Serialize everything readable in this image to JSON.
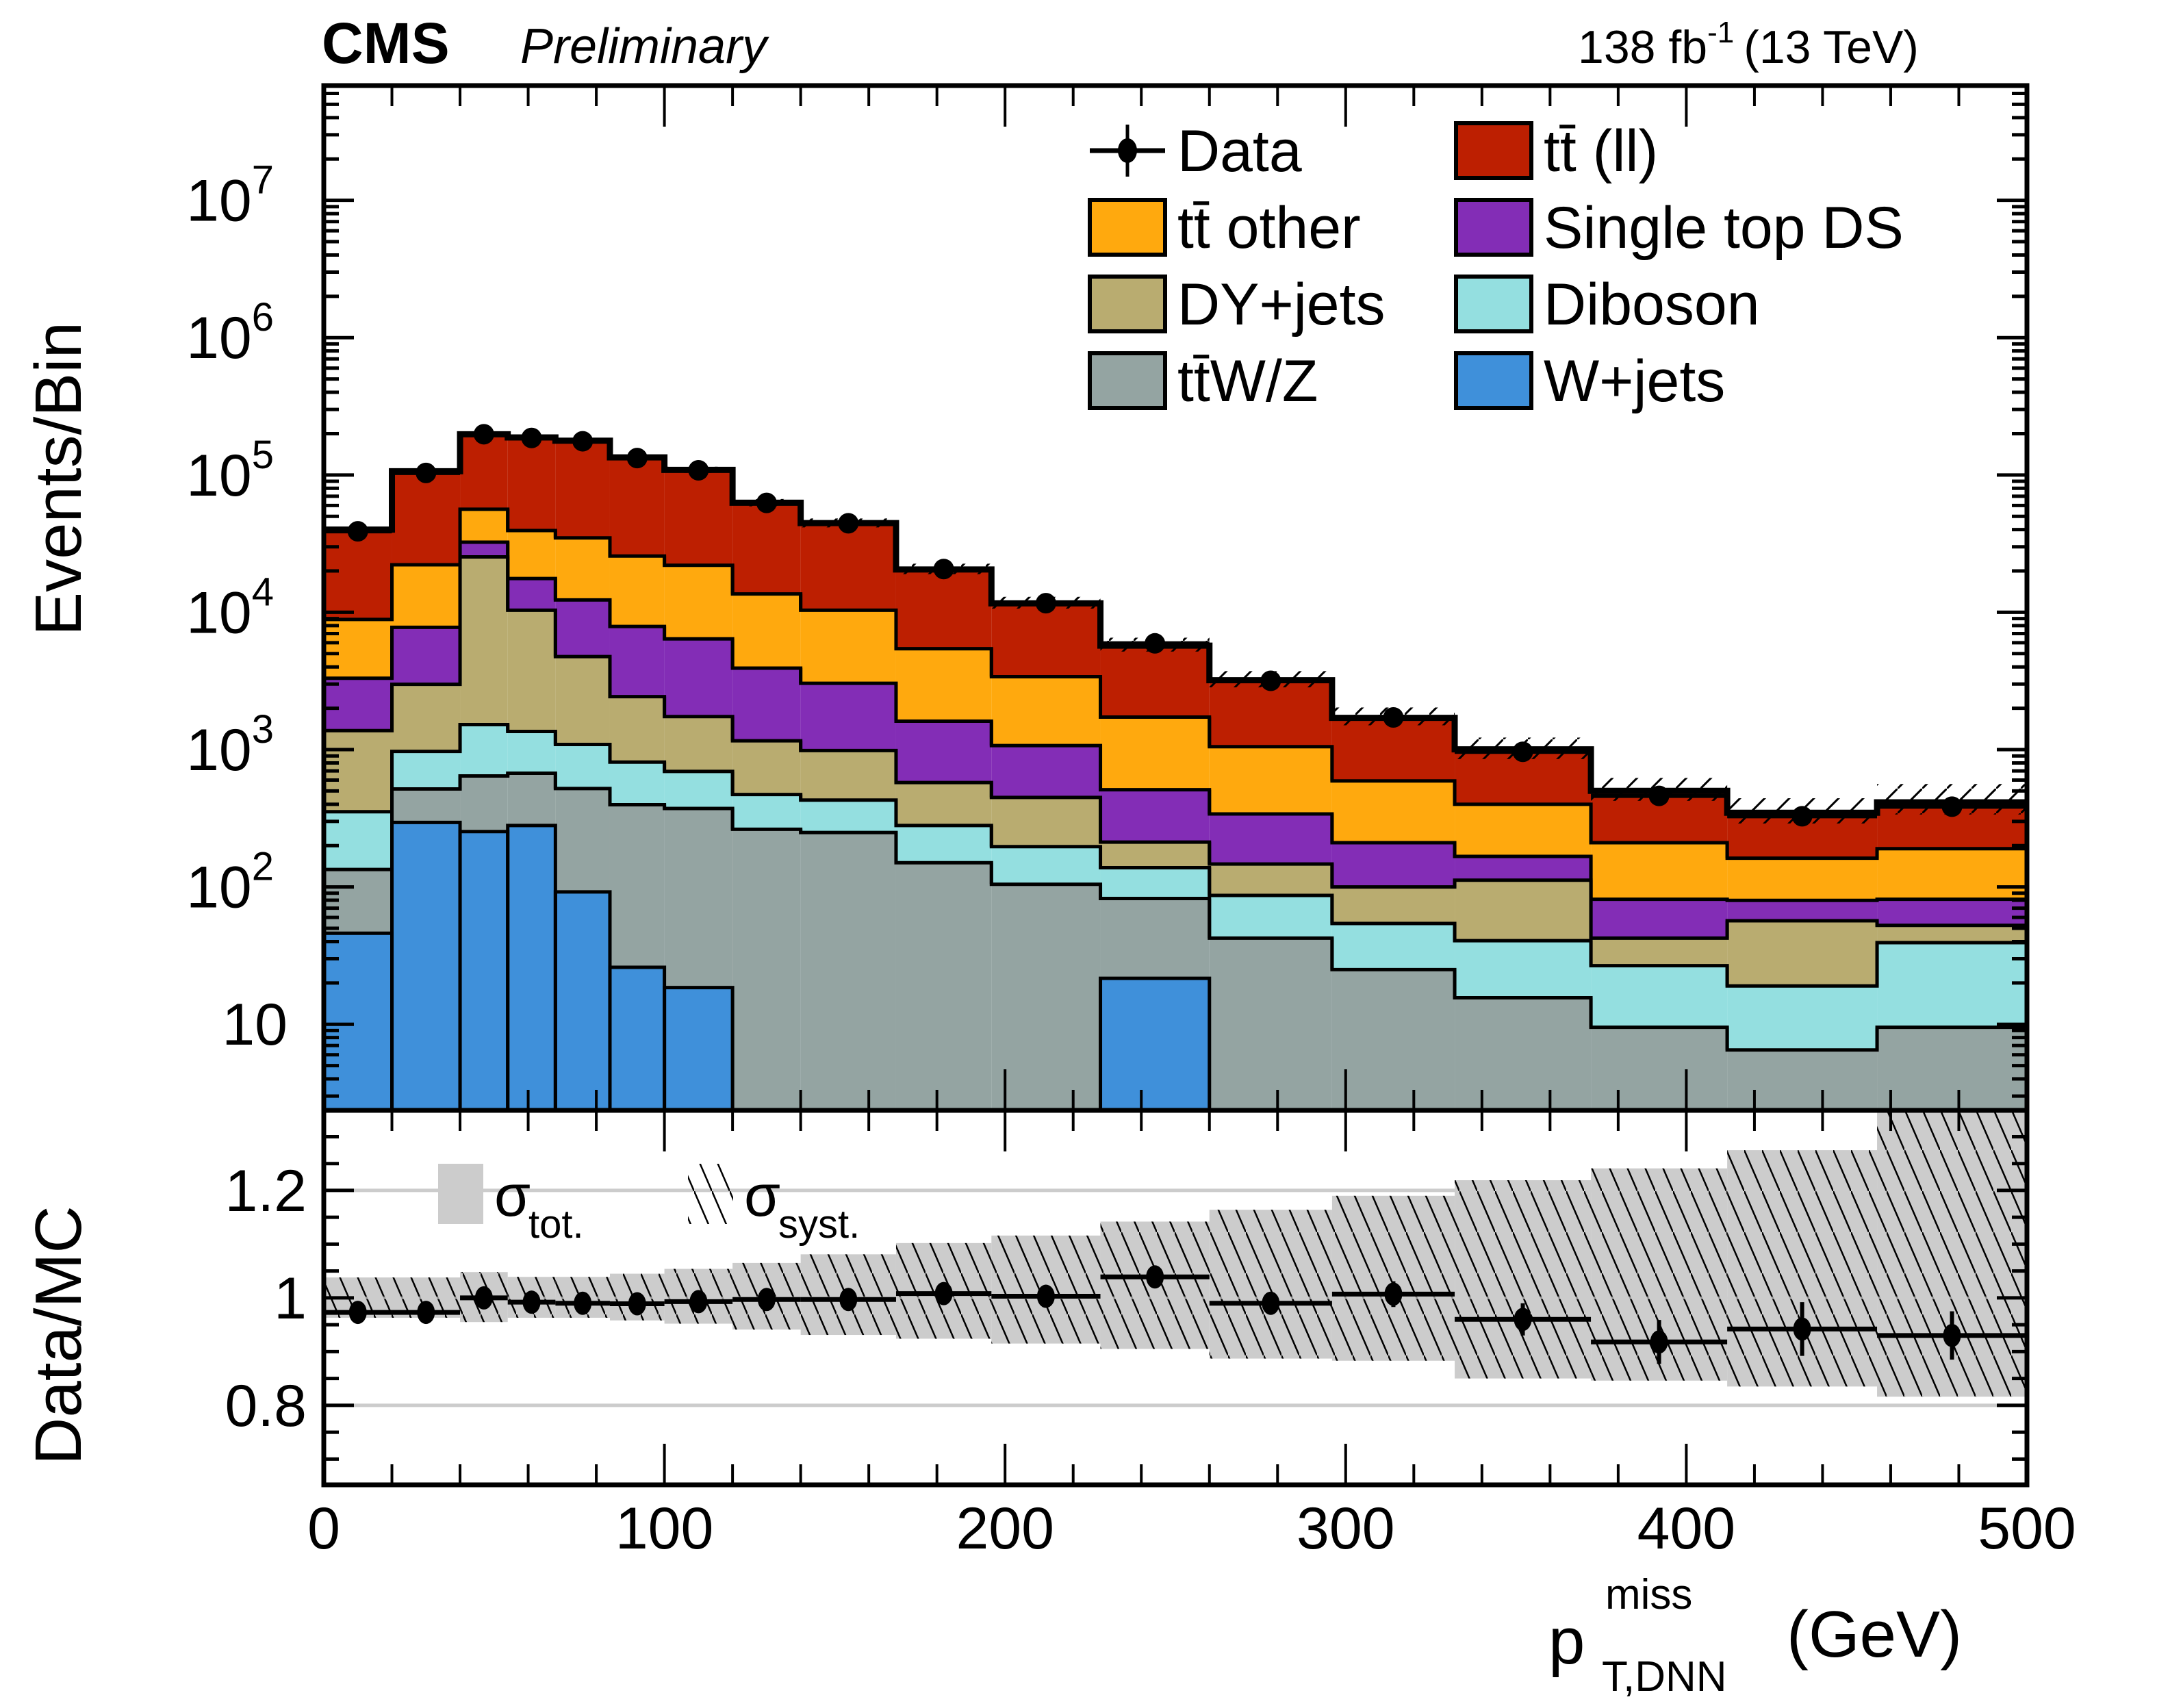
{
  "header": {
    "experiment": "CMS",
    "status": "Preliminary",
    "lumi_value": "138 fb",
    "lumi_exponent": "-1",
    "energy": "(13 TeV)"
  },
  "colors": {
    "tt_ll": "#bd1f01",
    "tt_other": "#ffa90e",
    "single_top_ds": "#832db6",
    "dy_jets": "#b9ac70",
    "diboson": "#94dfe0",
    "ttwz": "#94a4a2",
    "w_jets": "#3f90da",
    "band_fill": "#cccccc",
    "grid": "#cccccc"
  },
  "chart_data": {
    "type": "bar",
    "subtype": "stacked-histogram-with-ratio",
    "title": "CMS Preliminary",
    "xlabel": "p_T,DNN^miss (GeV)",
    "xlabel_parts": {
      "base": "p",
      "sup": "miss",
      "sub": "T,DNN",
      "unit": "(GeV)"
    },
    "ylabel": "Events/Bin",
    "ratio_ylabel": "Data/MC",
    "xlim": [
      0,
      500
    ],
    "ylim": [
      2.36,
      68500000
    ],
    "yscale": "log",
    "ratio_ylim": [
      0.652,
      1.349
    ],
    "x_ticks": [
      "0",
      "100",
      "200",
      "300",
      "400",
      "500"
    ],
    "y_ticks": [
      {
        "value": 10,
        "base": "10",
        "exp": ""
      },
      {
        "value": 100,
        "base": "10",
        "exp": "2"
      },
      {
        "value": 1000,
        "base": "10",
        "exp": "3"
      },
      {
        "value": 10000,
        "base": "10",
        "exp": "4"
      },
      {
        "value": 100000,
        "base": "10",
        "exp": "5"
      },
      {
        "value": 1000000,
        "base": "10",
        "exp": "6"
      },
      {
        "value": 10000000,
        "base": "10",
        "exp": "7"
      }
    ],
    "ratio_ticks": [
      "0.8",
      "1",
      "1.2"
    ],
    "ratio_gridlines": [
      0.8,
      1.0,
      1.2
    ],
    "bin_edges": [
      0,
      20,
      40,
      54,
      68,
      84,
      100,
      120,
      140,
      168,
      196,
      228,
      260,
      296,
      332,
      372,
      412,
      456,
      500
    ],
    "series": [
      {
        "key": "w_jets",
        "name": "W+jets",
        "values": [
          46,
          295,
          253,
          280,
          92,
          26,
          18.5,
          0,
          0,
          0,
          0,
          21.6,
          0,
          0,
          0,
          0,
          0,
          0
        ]
      },
      {
        "key": "ttwz",
        "name": "tt̄W/Z",
        "values": [
          88,
          222,
          390,
          393,
          429,
          371,
          354,
          263,
          249,
          150,
          104.6,
          60.8,
          42.4,
          25,
          15.6,
          9.5,
          6.5,
          9.5
        ]
      },
      {
        "key": "diboson",
        "name": "Diboson",
        "values": [
          219,
          453,
          877,
          682,
          569,
          414,
          321,
          208,
          180,
          130,
          92,
          55.6,
          44.4,
          29.2,
          25,
          17.2,
          12.5,
          29.8
        ]
      },
      {
        "key": "dy_jets",
        "name": "DY+jets",
        "values": [
          1022,
          2020,
          23780,
          8995,
          3670,
          1619,
          1046,
          689,
          556,
          296,
          252,
          74,
          60,
          45.8,
          71.4,
          15.7,
          37.7,
          13.2
        ]
      },
      {
        "key": "single_top_ds",
        "name": "Single top DS",
        "values": [
          1935,
          4780,
          7100,
          7250,
          7540,
          5460,
          4660,
          2760,
          2055,
          1034,
          622,
          298,
          193,
          110,
          55,
          38.9,
          23.1,
          28.8
        ]
      },
      {
        "key": "tt_other",
        "name": "tt̄ other",
        "values": [
          5560,
          14430,
          23900,
          21800,
          22500,
          17810,
          15600,
          9680,
          7310,
          3820,
          2324,
          1215,
          710,
          382,
          233,
          128.7,
          82.2,
          108.7
        ]
      },
      {
        "key": "tt_ll",
        "name": "tt̄ (ll)",
        "values": [
          31130,
          84200,
          141700,
          148200,
          143000,
          108600,
          86900,
          49200,
          34250,
          15070,
          8225,
          3995,
          2153,
          1111,
          604,
          291,
          185,
          223
        ]
      }
    ],
    "data": {
      "name": "Data",
      "values": [
        38900,
        103500,
        198000,
        186100,
        176000,
        132800,
        108100,
        62600,
        44500,
        20660,
        11650,
        5940,
        3170,
        1715,
        964,
        460,
        327,
        384
      ]
    },
    "ratio": {
      "values": [
        0.973,
        0.973,
        1.0,
        0.992,
        0.99,
        0.989,
        0.993,
        0.997,
        0.997,
        1.008,
        1.003,
        1.039,
        0.99,
        1.007,
        0.96,
        0.918,
        0.942,
        0.93
      ],
      "errors": [
        0.002,
        0.002,
        0.002,
        0.002,
        0.002,
        0.002,
        0.003,
        0.004,
        0.005,
        0.007,
        0.009,
        0.013,
        0.018,
        0.024,
        0.03,
        0.041,
        0.05,
        0.045
      ],
      "band_tot_up": [
        0.038,
        0.038,
        0.048,
        0.039,
        0.039,
        0.045,
        0.054,
        0.065,
        0.081,
        0.102,
        0.116,
        0.142,
        0.164,
        0.19,
        0.219,
        0.241,
        0.275,
        0.36
      ],
      "band_tot_down": [
        0.037,
        0.037,
        0.045,
        0.037,
        0.037,
        0.042,
        0.048,
        0.059,
        0.069,
        0.076,
        0.085,
        0.095,
        0.113,
        0.117,
        0.15,
        0.154,
        0.165,
        0.184
      ]
    },
    "legend": {
      "placement": "top-right",
      "columns": 2,
      "entries": [
        {
          "label": "Data",
          "key": "data",
          "style": "marker"
        },
        {
          "label": "tt̄ (ll)",
          "key": "tt_ll",
          "style": "box"
        },
        {
          "label": "tt̄ other",
          "key": "tt_other",
          "style": "box"
        },
        {
          "label": "Single top DS",
          "key": "single_top_ds",
          "style": "box"
        },
        {
          "label": "DY+jets",
          "key": "dy_jets",
          "style": "box"
        },
        {
          "label": "Diboson",
          "key": "diboson",
          "style": "box"
        },
        {
          "label": "tt̄W/Z",
          "key": "ttwz",
          "style": "box"
        },
        {
          "label": "W+jets",
          "key": "w_jets",
          "style": "box"
        }
      ]
    },
    "ratio_legend": {
      "placement": "top-left",
      "entries": [
        {
          "symbol": "σ",
          "sub": "tot.",
          "style": "fill"
        },
        {
          "symbol": "σ",
          "sub": "syst.",
          "style": "hatch"
        }
      ]
    },
    "grid": {
      "main": false,
      "ratio": true
    }
  }
}
